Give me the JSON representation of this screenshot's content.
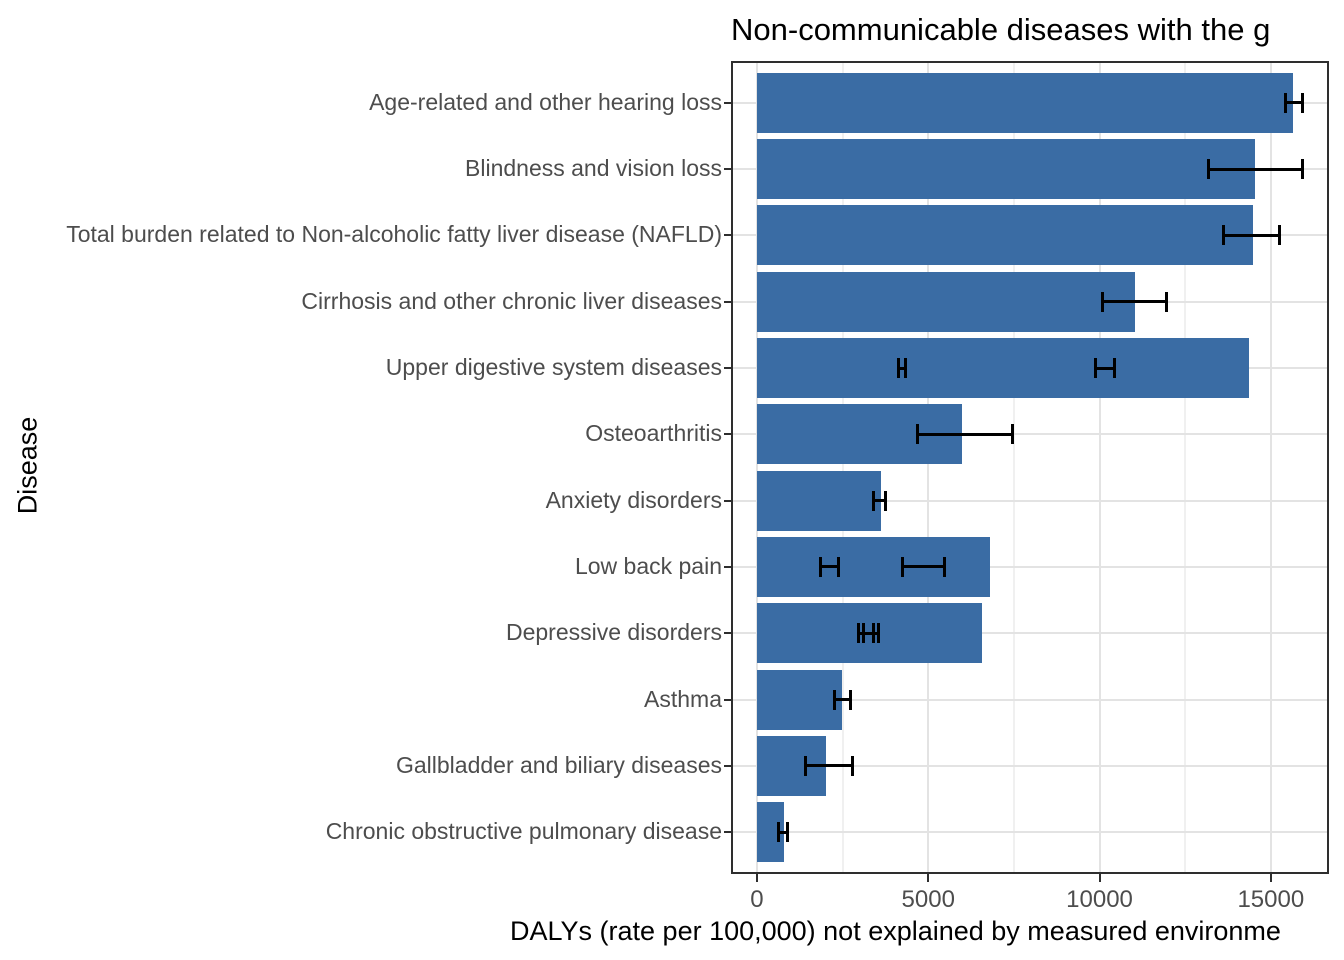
{
  "title": "Non-communicable diseases with the g",
  "chart_data": {
    "type": "bar",
    "orientation": "horizontal",
    "title": "Non-communicable diseases with the g",
    "title_note": "clipped at right edge of image",
    "xlabel": "DALYs (rate per 100,000) not explained by measured environme",
    "xlabel_note": "clipped at right edge of image",
    "ylabel": "Disease",
    "categories": [
      "Age-related and other hearing loss",
      "Blindness and vision loss",
      "Total burden related to Non-alcoholic fatty liver disease (NAFLD)",
      "Cirrhosis and other chronic liver diseases",
      "Upper digestive system diseases",
      "Osteoarthritis",
      "Anxiety disorders",
      "Low back pain",
      "Depressive disorders",
      "Asthma",
      "Gallbladder and biliary diseases",
      "Chronic obstructive pulmonary disease"
    ],
    "values": [
      15645,
      14535,
      14480,
      11030,
      14360,
      5985,
      3620,
      6800,
      6570,
      2480,
      2015,
      790
    ],
    "error_bars": [
      [
        [
          15410,
          15930
        ]
      ],
      [
        [
          13170,
          15940
        ]
      ],
      [
        [
          13600,
          15265
        ]
      ],
      [
        [
          10060,
          11980
        ]
      ],
      [
        [
          4115,
          4350
        ],
        [
          9870,
          10450
        ]
      ],
      [
        [
          4670,
          7470
        ]
      ],
      [
        [
          3390,
          3770
        ]
      ],
      [
        [
          1840,
          2400
        ],
        [
          4225,
          5490
        ]
      ],
      [
        [
          2960,
          3425
        ],
        [
          3085,
          3560
        ]
      ],
      [
        [
          2250,
          2745
        ]
      ],
      [
        [
          1400,
          2800
        ]
      ],
      [
        [
          610,
          905
        ]
      ]
    ],
    "x_ticks": [
      0,
      5000,
      10000,
      15000
    ],
    "x_tick_labels": [
      "0",
      "5000",
      "10000",
      "15000"
    ],
    "x_minor_gridlines": [
      2500,
      7500,
      12500
    ],
    "xlim": [
      -700,
      16640
    ],
    "grid": "major and minor vertical, major horizontal per category",
    "legend": "none",
    "colors": {
      "bar_fill": "#3a6ca4",
      "error_bar": "#000000",
      "grid_major": "#e3e3e3",
      "grid_minor": "#f0f0f0",
      "panel_border": "#2e2e2e",
      "axis_text": "#4d4d4d",
      "title_text": "#000000",
      "background": "#ffffff"
    }
  }
}
